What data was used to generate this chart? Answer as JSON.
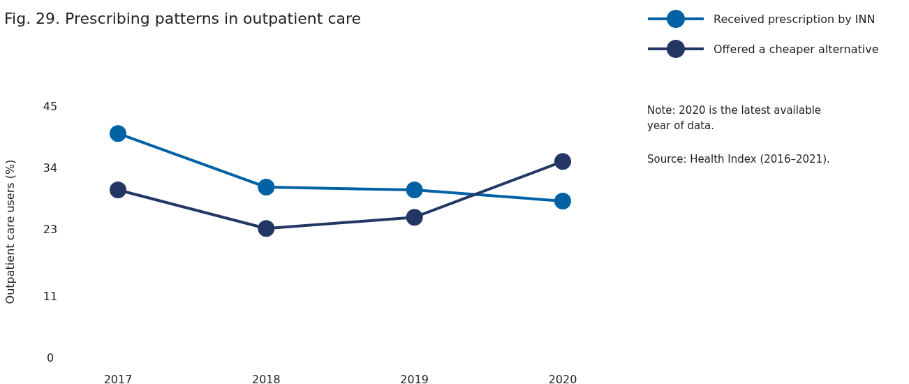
{
  "chart_data": {
    "type": "line",
    "title": "Fig. 29. Prescribing patterns in outpatient care",
    "ylabel": "Outpatient care users (%)",
    "categories": [
      "2017",
      "2018",
      "2019",
      "2020"
    ],
    "series": [
      {
        "name": "Received prescription by INN",
        "color": "#0062a4",
        "values": [
          40.1,
          30.5,
          30,
          28
        ]
      },
      {
        "name": "Offered a cheaper alternative",
        "color": "#243764",
        "values": [
          30,
          23.1,
          25.1,
          35.1
        ]
      }
    ],
    "ylim": [
      0,
      45
    ],
    "yticks": [
      0,
      11,
      23,
      34,
      45
    ],
    "grid": false,
    "legend": "top right",
    "marker": "circle",
    "line_style": "solid",
    "annotations": [
      "Note: 2020 is the latest available year of data.",
      "Source: Health Index (2016–2021)."
    ]
  }
}
